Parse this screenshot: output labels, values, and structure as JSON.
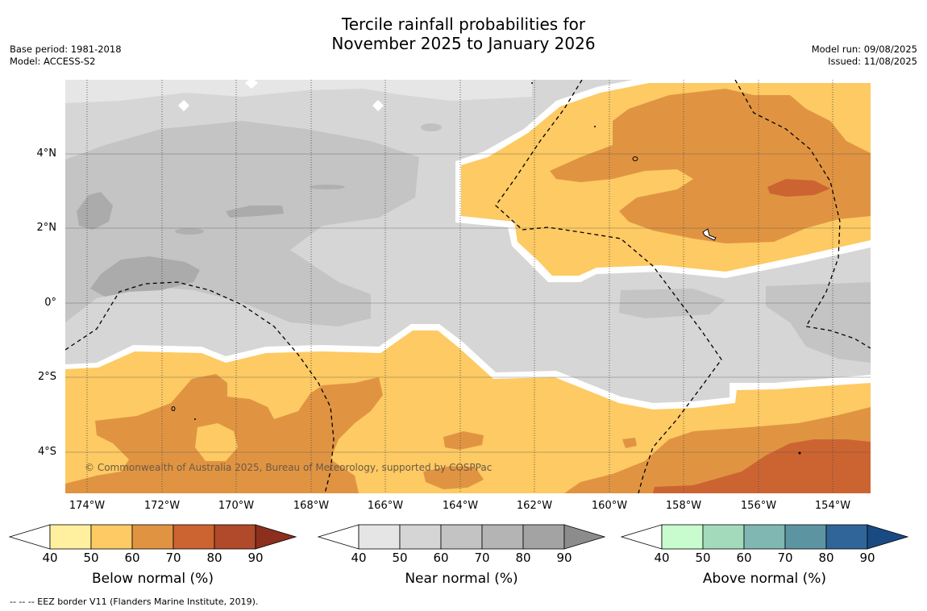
{
  "title_line1": "Tercile rainfall probabilities for",
  "title_line2": "November 2025 to January 2026",
  "meta_left": [
    "Base period: 1981-2018",
    "Model: ACCESS-S2"
  ],
  "meta_right": [
    "Model run: 09/08/2025",
    "Issued: 11/08/2025"
  ],
  "lat_labels": [
    "4°N",
    "2°N",
    "0°",
    "2°S",
    "4°S"
  ],
  "lon_labels": [
    "174°W",
    "172°W",
    "170°W",
    "168°W",
    "166°W",
    "164°W",
    "162°W",
    "160°W",
    "158°W",
    "156°W",
    "154°W"
  ],
  "copyright": "© Commonwealth of Australia 2025, Bureau of Meteorology, supported by COSPPac",
  "legends": [
    {
      "title": "Below normal (%)",
      "ticks": [
        "40",
        "50",
        "60",
        "70",
        "80",
        "90"
      ],
      "colors": [
        "#fff0a0",
        "#fdca63",
        "#e09442",
        "#cc6432",
        "#b04a2a",
        "#8c2f1e"
      ]
    },
    {
      "title": "Near normal (%)",
      "ticks": [
        "40",
        "50",
        "60",
        "70",
        "80",
        "90"
      ],
      "colors": [
        "#e5e5e5",
        "#d5d5d5",
        "#c3c3c3",
        "#b4b4b4",
        "#a3a3a3",
        "#8c8c8c"
      ]
    },
    {
      "title": "Above normal (%)",
      "ticks": [
        "40",
        "50",
        "60",
        "70",
        "80",
        "90"
      ],
      "colors": [
        "#c8fcce",
        "#a3dabc",
        "#80b7b2",
        "#5d94a2",
        "#2f6598",
        "#1a4a82"
      ]
    }
  ],
  "footnote": "--  --  -- EEZ border V11 (Flanders Marine Institute, 2019)."
}
